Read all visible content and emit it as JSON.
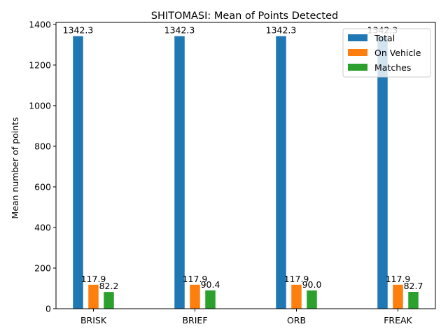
{
  "chart_data": {
    "type": "bar",
    "title": "SHITOMASI: Mean of Points Detected",
    "xlabel": "",
    "ylabel": "Mean number of points",
    "categories": [
      "BRISK",
      "BRIEF",
      "ORB",
      "FREAK"
    ],
    "series": [
      {
        "name": "Total",
        "color": "#1f77b4",
        "values": [
          1342.3,
          1342.3,
          1342.3,
          1342.3
        ],
        "labels": [
          "1342.3",
          "1342.3",
          "1342.3",
          "1342.3"
        ]
      },
      {
        "name": "On Vehicle",
        "color": "#ff7f0e",
        "values": [
          117.9,
          117.9,
          117.9,
          117.9
        ],
        "labels": [
          "117.9",
          "117.9",
          "117.9",
          "117.9"
        ]
      },
      {
        "name": "Matches",
        "color": "#2ca02c",
        "values": [
          82.2,
          90.4,
          90.0,
          82.7
        ],
        "labels": [
          "82.2",
          "90.4",
          "90.0",
          "82.7"
        ]
      }
    ],
    "ylim": [
      0,
      1410
    ],
    "yticks": [
      0,
      200,
      400,
      600,
      800,
      1000,
      1200,
      1400
    ],
    "grid": false,
    "legend_position": "top-right"
  }
}
